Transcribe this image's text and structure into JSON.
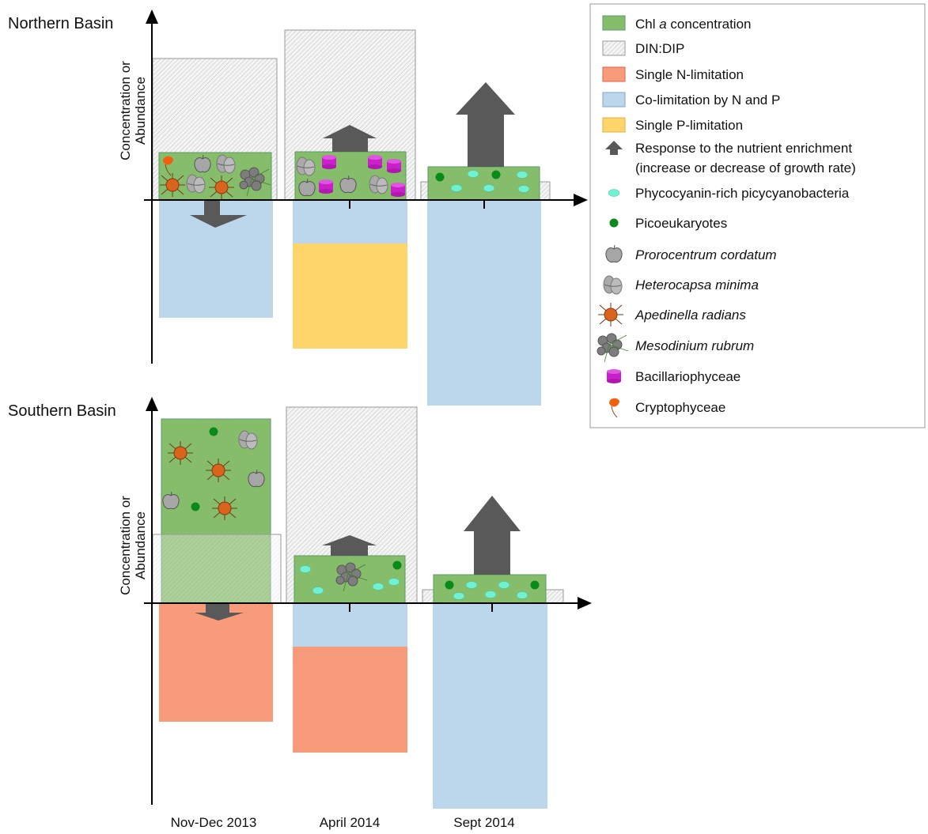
{
  "northern_panel": {
    "title": "Northern Basin",
    "y_axis_label": [
      "Concentration or",
      "Abundance"
    ]
  },
  "southern_panel": {
    "title": "Southern Basin",
    "y_axis_label": [
      "Concentration or",
      "Abundance"
    ]
  },
  "x_axis_labels": [
    "Nov-Dec 2013",
    "April 2014",
    "Sept 2014"
  ],
  "legend": {
    "items": [
      {
        "parts": [
          "Chl ",
          "a",
          " concentration"
        ]
      },
      {
        "label": "DIN:DIP"
      },
      {
        "label": "Single N-limitation"
      },
      {
        "label": "Co-limitation by N and P"
      },
      {
        "label": "Single P-limitation"
      },
      {
        "lines": [
          "Response to the nutrient enrichment",
          "(increase or decrease of growth rate)"
        ]
      },
      {
        "label": "Phycocyanin-rich picycyanobacteria"
      },
      {
        "label": "Picoeukaryotes"
      },
      {
        "label": "Prorocentrum cordatum"
      },
      {
        "label": "Heterocapsa minima"
      },
      {
        "label": "Apedinella radians"
      },
      {
        "label": "Mesodinium rubrum"
      },
      {
        "label": "Bacillariophyceae"
      },
      {
        "label": "Cryptophyceae"
      }
    ]
  }
}
